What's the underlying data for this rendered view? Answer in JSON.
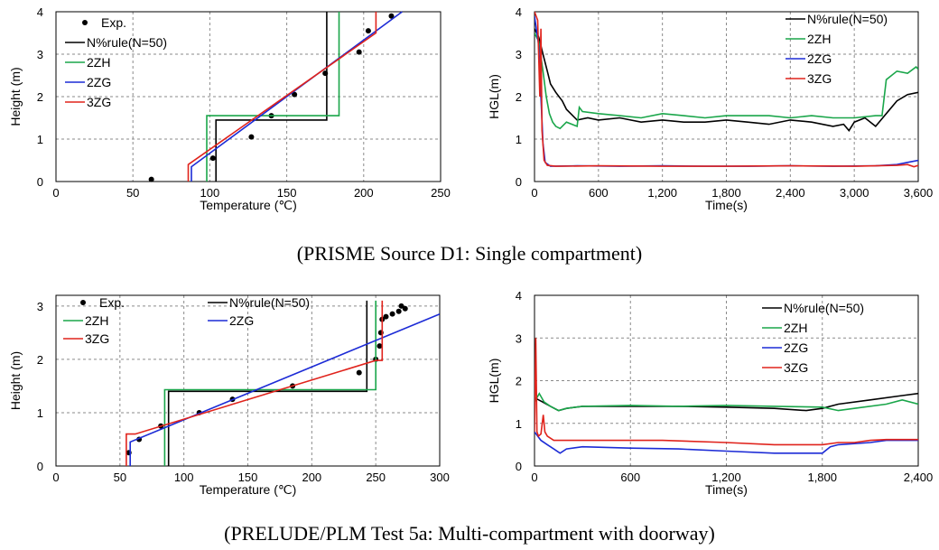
{
  "captions": [
    "(PRISME Source D1: Single compartment)",
    "(PRELUDE/PLM Test 5a: Multi-compartment with doorway)"
  ],
  "colors": {
    "exp": "#000000",
    "n50": "#000000",
    "2ZH": "#1aa64a",
    "2ZG": "#1c2bd6",
    "3ZG": "#e0231c"
  },
  "chart_data": [
    {
      "id": "prisme-temp",
      "type": "line",
      "xlabel": "Temperature (℃)",
      "ylabel": "Height (m)",
      "xlim": [
        0,
        250
      ],
      "ylim": [
        0,
        4
      ],
      "xticks": [
        0,
        50,
        100,
        150,
        200,
        250
      ],
      "xtick_labels": [
        "0",
        "50",
        "100",
        "150",
        "200",
        "250"
      ],
      "yticks": [
        0,
        1,
        2,
        3,
        4
      ],
      "ytick_labels": [
        "0",
        "1",
        "2",
        "3",
        "4"
      ],
      "grid": true,
      "legend": "top-left",
      "series": [
        {
          "name": "Exp.",
          "key": "exp",
          "style": "points",
          "x": [
            62,
            102,
            127,
            140,
            155,
            175,
            197,
            203,
            218
          ],
          "y": [
            0.05,
            0.55,
            1.05,
            1.55,
            2.05,
            2.55,
            3.05,
            3.55,
            3.9
          ]
        },
        {
          "name": "N%rule(N=50)",
          "key": "n50",
          "style": "line",
          "x": [
            104,
            104,
            176,
            176
          ],
          "y": [
            0,
            1.45,
            1.45,
            4
          ]
        },
        {
          "name": "2ZH",
          "key": "2ZH",
          "style": "line",
          "x": [
            98,
            98,
            184,
            184
          ],
          "y": [
            0,
            1.55,
            1.55,
            4
          ]
        },
        {
          "name": "2ZG",
          "key": "2ZG",
          "style": "line",
          "x": [
            88,
            88,
            225
          ],
          "y": [
            0,
            0.35,
            4
          ]
        },
        {
          "name": "3ZG",
          "key": "3ZG",
          "style": "line",
          "x": [
            86,
            86,
            208,
            208
          ],
          "y": [
            0,
            0.4,
            3.5,
            4
          ]
        }
      ]
    },
    {
      "id": "prisme-hgl",
      "type": "line",
      "xlabel": "Time(s)",
      "ylabel": "HGL(m)",
      "xlim": [
        0,
        3600
      ],
      "ylim": [
        0,
        4
      ],
      "xticks": [
        0,
        600,
        1200,
        1800,
        2400,
        3000,
        3600
      ],
      "xtick_labels": [
        "0",
        "600",
        "1,200",
        "1,800",
        "2,400",
        "3,000",
        "3,600"
      ],
      "yticks": [
        0,
        1,
        2,
        3,
        4
      ],
      "ytick_labels": [
        "0",
        "1",
        "2",
        "3",
        "4"
      ],
      "grid": true,
      "legend": "top-right",
      "series": [
        {
          "name": "N%rule(N=50)",
          "key": "n50",
          "style": "line",
          "x": [
            0,
            40,
            80,
            120,
            150,
            200,
            260,
            300,
            400,
            500,
            600,
            800,
            1000,
            1200,
            1400,
            1600,
            1800,
            2000,
            2200,
            2400,
            2600,
            2800,
            2900,
            2950,
            3000,
            3100,
            3200,
            3300,
            3400,
            3500,
            3600
          ],
          "y": [
            3.6,
            3.4,
            3.0,
            2.6,
            2.3,
            2.1,
            1.9,
            1.7,
            1.45,
            1.5,
            1.45,
            1.5,
            1.4,
            1.45,
            1.4,
            1.4,
            1.45,
            1.4,
            1.35,
            1.45,
            1.4,
            1.3,
            1.35,
            1.2,
            1.4,
            1.5,
            1.3,
            1.6,
            1.9,
            2.05,
            2.1
          ]
        },
        {
          "name": "2ZH",
          "key": "2ZH",
          "style": "line",
          "x": [
            0,
            40,
            80,
            110,
            140,
            170,
            200,
            240,
            300,
            400,
            420,
            450,
            600,
            800,
            1000,
            1200,
            1400,
            1600,
            1800,
            2000,
            2200,
            2400,
            2600,
            2800,
            3000,
            3200,
            3260,
            3300,
            3400,
            3500,
            3580,
            3600
          ],
          "y": [
            3.5,
            3.3,
            2.6,
            2.0,
            1.6,
            1.4,
            1.3,
            1.25,
            1.4,
            1.3,
            1.75,
            1.65,
            1.6,
            1.55,
            1.5,
            1.6,
            1.55,
            1.5,
            1.55,
            1.55,
            1.55,
            1.5,
            1.55,
            1.5,
            1.5,
            1.55,
            1.55,
            2.4,
            2.6,
            2.55,
            2.7,
            2.65
          ]
        },
        {
          "name": "2ZG",
          "key": "2ZG",
          "style": "line",
          "x": [
            0,
            40,
            60,
            80,
            100,
            150,
            400,
            800,
            1200,
            1600,
            2000,
            2400,
            2800,
            3200,
            3400,
            3500,
            3600
          ],
          "y": [
            3.9,
            3.2,
            2.0,
            0.9,
            0.45,
            0.36,
            0.37,
            0.36,
            0.37,
            0.36,
            0.36,
            0.37,
            0.36,
            0.37,
            0.4,
            0.45,
            0.5
          ]
        },
        {
          "name": "3ZG",
          "key": "3ZG",
          "style": "line",
          "x": [
            0,
            30,
            50,
            60,
            70,
            90,
            120,
            200,
            600,
            1200,
            1800,
            2400,
            3000,
            3400,
            3500,
            3560,
            3600
          ],
          "y": [
            4.0,
            3.8,
            2.0,
            3.6,
            1.2,
            0.5,
            0.38,
            0.36,
            0.37,
            0.36,
            0.36,
            0.37,
            0.36,
            0.38,
            0.4,
            0.35,
            0.38
          ]
        }
      ]
    },
    {
      "id": "prelude-temp",
      "type": "line",
      "xlabel": "Temperature (℃)",
      "ylabel": "Height (m)",
      "xlim": [
        0,
        300
      ],
      "ylim": [
        0,
        3.2
      ],
      "xticks": [
        0,
        50,
        100,
        150,
        200,
        250,
        300
      ],
      "xtick_labels": [
        "0",
        "50",
        "100",
        "150",
        "200",
        "250",
        "300"
      ],
      "yticks": [
        0,
        1,
        2,
        3
      ],
      "ytick_labels": [
        "0",
        "1",
        "2",
        "3"
      ],
      "grid": true,
      "legend": "top-left",
      "series": [
        {
          "name": "Exp.",
          "key": "exp",
          "style": "points",
          "x": [
            57,
            65,
            82,
            112,
            138,
            185,
            237,
            250,
            253,
            254,
            255,
            258,
            263,
            268,
            270,
            273
          ],
          "y": [
            0.25,
            0.5,
            0.75,
            1.0,
            1.25,
            1.5,
            1.75,
            2.0,
            2.25,
            2.5,
            2.75,
            2.8,
            2.85,
            2.9,
            3.0,
            2.95
          ]
        },
        {
          "name": "N%rule(N=50)",
          "key": "n50",
          "style": "line",
          "x": [
            88,
            88,
            243,
            243
          ],
          "y": [
            0,
            1.4,
            1.4,
            3.1
          ]
        },
        {
          "name": "2ZH",
          "key": "2ZH",
          "style": "line",
          "x": [
            85,
            85,
            250,
            250
          ],
          "y": [
            0,
            1.43,
            1.43,
            3.1
          ]
        },
        {
          "name": "2ZG",
          "key": "2ZG",
          "style": "line",
          "x": [
            58,
            58,
            300
          ],
          "y": [
            0,
            0.45,
            2.85
          ]
        },
        {
          "name": "3ZG",
          "key": "3ZG",
          "style": "line",
          "x": [
            55,
            55,
            62,
            250,
            255,
            255
          ],
          "y": [
            0,
            0.6,
            0.6,
            1.98,
            1.98,
            3.1
          ]
        }
      ]
    },
    {
      "id": "prelude-hgl",
      "type": "line",
      "xlabel": "Time(s)",
      "ylabel": "HGL(m)",
      "xlim": [
        0,
        2400
      ],
      "ylim": [
        0,
        4
      ],
      "xticks": [
        0,
        600,
        1200,
        1800,
        2400
      ],
      "xtick_labels": [
        "0",
        "600",
        "1,200",
        "1,800",
        "2,400"
      ],
      "yticks": [
        0,
        1,
        2,
        3,
        4
      ],
      "ytick_labels": [
        "0",
        "1",
        "2",
        "3",
        "4"
      ],
      "grid": true,
      "legend": "top-right",
      "series": [
        {
          "name": "N%rule(N=50)",
          "key": "n50",
          "style": "line",
          "x": [
            0,
            50,
            100,
            150,
            200,
            300,
            600,
            900,
            1200,
            1500,
            1700,
            1800,
            1900,
            2100,
            2300,
            2400
          ],
          "y": [
            1.6,
            1.5,
            1.4,
            1.3,
            1.35,
            1.4,
            1.4,
            1.4,
            1.38,
            1.35,
            1.3,
            1.35,
            1.45,
            1.55,
            1.65,
            1.7
          ]
        },
        {
          "name": "2ZH",
          "key": "2ZH",
          "style": "line",
          "x": [
            0,
            30,
            60,
            100,
            150,
            200,
            300,
            600,
            900,
            1200,
            1500,
            1800,
            1900,
            2000,
            2200,
            2300,
            2400
          ],
          "y": [
            1.5,
            1.7,
            1.5,
            1.4,
            1.3,
            1.35,
            1.4,
            1.42,
            1.4,
            1.42,
            1.4,
            1.38,
            1.3,
            1.35,
            1.45,
            1.55,
            1.45
          ]
        },
        {
          "name": "2ZG",
          "key": "2ZG",
          "style": "line",
          "x": [
            0,
            40,
            80,
            120,
            160,
            200,
            300,
            600,
            900,
            1200,
            1500,
            1800,
            1850,
            1900,
            2100,
            2200,
            2400
          ],
          "y": [
            0.8,
            0.6,
            0.5,
            0.4,
            0.3,
            0.4,
            0.45,
            0.42,
            0.4,
            0.35,
            0.3,
            0.3,
            0.45,
            0.5,
            0.55,
            0.6,
            0.6
          ]
        },
        {
          "name": "3ZG",
          "key": "3ZG",
          "style": "line",
          "x": [
            0,
            8,
            15,
            25,
            40,
            55,
            65,
            80,
            120,
            200,
            400,
            800,
            1200,
            1500,
            1800,
            1900,
            2000,
            2100,
            2200,
            2400
          ],
          "y": [
            0.8,
            3.0,
            0.8,
            0.7,
            0.75,
            1.2,
            0.8,
            0.7,
            0.6,
            0.6,
            0.6,
            0.6,
            0.55,
            0.5,
            0.5,
            0.55,
            0.55,
            0.6,
            0.62,
            0.62
          ]
        }
      ]
    }
  ]
}
